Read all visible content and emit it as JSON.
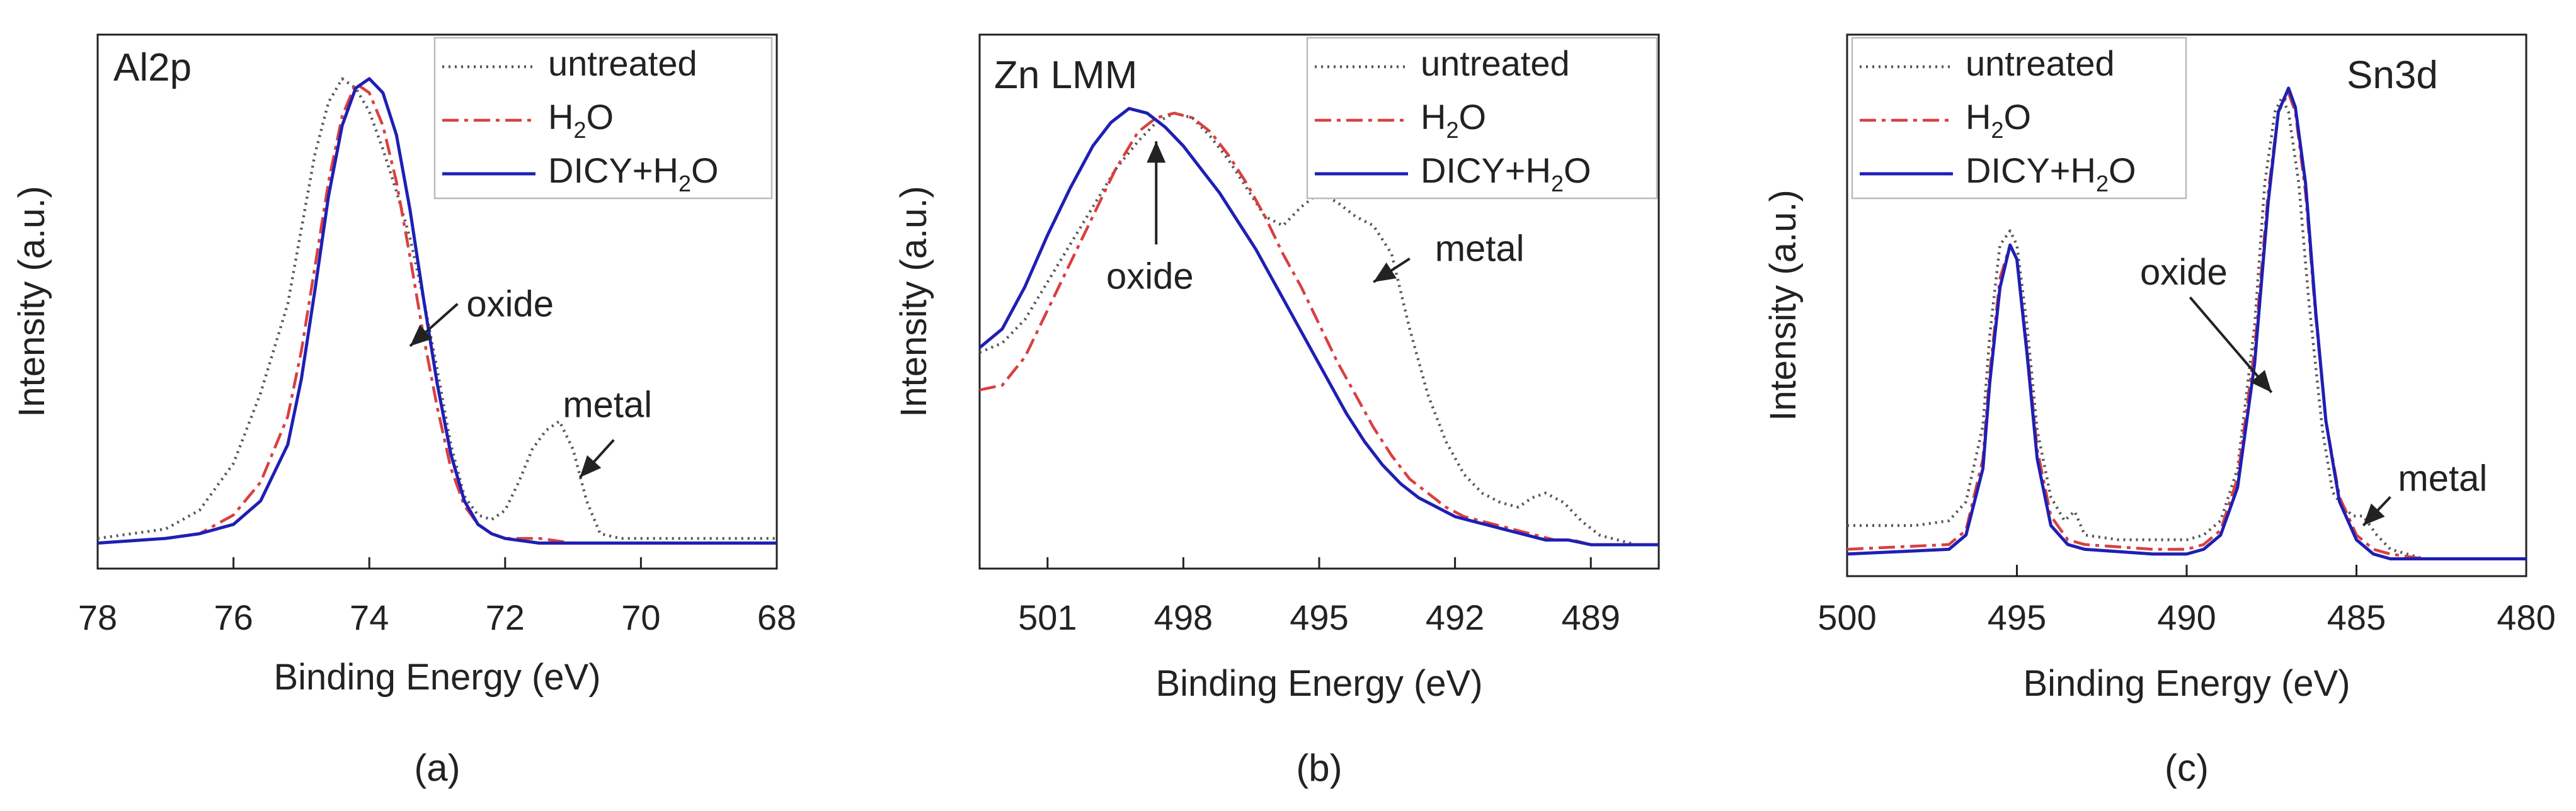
{
  "figure": {
    "xlabel": "Binding Energy (eV)",
    "ylabel": "Intensity (a.u.)"
  },
  "chart_data": [
    {
      "type": "line",
      "panel_label": "(a)",
      "element_label": "Al2p",
      "xlabel": "Binding Energy (eV)",
      "ylabel": "Intensity (a.u.)",
      "xlim": [
        78,
        68
      ],
      "ylim": [
        0,
        1.05
      ],
      "xticks": [
        "78",
        "76",
        "74",
        "72",
        "70",
        "68"
      ],
      "xtick_values": [
        78,
        76,
        74,
        72,
        70,
        68
      ],
      "legend": [
        "untreated",
        "H2O",
        "DICY+H2O"
      ],
      "series": [
        {
          "name": "untreated",
          "color": "#555555",
          "style": "dotted",
          "x": [
            78,
            77.5,
            77,
            76.5,
            76,
            75.6,
            75.2,
            75,
            74.8,
            74.6,
            74.4,
            74.2,
            74.0,
            73.8,
            73.6,
            73.4,
            73.2,
            73.0,
            72.8,
            72.6,
            72.4,
            72.2,
            72.0,
            71.8,
            71.6,
            71.4,
            71.2,
            71.0,
            70.8,
            70.6,
            70.3,
            70,
            69.5,
            69,
            68.5,
            68
          ],
          "values": [
            0.02,
            0.03,
            0.04,
            0.08,
            0.18,
            0.33,
            0.52,
            0.68,
            0.84,
            0.95,
            1.0,
            0.98,
            0.93,
            0.85,
            0.76,
            0.66,
            0.53,
            0.38,
            0.22,
            0.11,
            0.07,
            0.06,
            0.08,
            0.14,
            0.21,
            0.25,
            0.27,
            0.21,
            0.1,
            0.03,
            0.02,
            0.02,
            0.02,
            0.02,
            0.02,
            0.02
          ]
        },
        {
          "name": "H2O",
          "color": "#d94040",
          "style": "dashdot",
          "x": [
            78,
            77,
            76.5,
            76,
            75.6,
            75.2,
            75,
            74.8,
            74.6,
            74.4,
            74.2,
            74.0,
            73.8,
            73.6,
            73.4,
            73.2,
            73.0,
            72.8,
            72.6,
            72.4,
            72.2,
            72.0,
            71.5,
            71,
            70,
            69,
            68
          ],
          "values": [
            0.01,
            0.02,
            0.03,
            0.07,
            0.14,
            0.28,
            0.42,
            0.6,
            0.78,
            0.92,
            0.99,
            0.97,
            0.9,
            0.78,
            0.62,
            0.45,
            0.3,
            0.17,
            0.09,
            0.05,
            0.03,
            0.02,
            0.02,
            0.01,
            0.01,
            0.01,
            0.01
          ]
        },
        {
          "name": "DICY+H2O",
          "color": "#1f1fb4",
          "style": "solid",
          "x": [
            78,
            77,
            76.5,
            76,
            75.6,
            75.2,
            75,
            74.8,
            74.6,
            74.4,
            74.2,
            74.0,
            73.8,
            73.6,
            73.4,
            73.2,
            73.0,
            72.8,
            72.6,
            72.4,
            72.2,
            72.0,
            71.5,
            71,
            70,
            69,
            68
          ],
          "values": [
            0.01,
            0.02,
            0.03,
            0.05,
            0.1,
            0.22,
            0.36,
            0.55,
            0.75,
            0.9,
            0.98,
            1.0,
            0.97,
            0.88,
            0.72,
            0.53,
            0.35,
            0.2,
            0.1,
            0.05,
            0.03,
            0.02,
            0.01,
            0.01,
            0.01,
            0.01,
            0.01
          ]
        }
      ],
      "annotations": [
        {
          "text": "oxide",
          "arrow_from": [
            72.7,
            0.52
          ],
          "arrow_to": [
            73.4,
            0.43
          ]
        },
        {
          "text": "metal",
          "arrow_from": [
            70.4,
            0.23
          ],
          "arrow_to": [
            70.9,
            0.15
          ]
        }
      ]
    },
    {
      "type": "line",
      "panel_label": "(b)",
      "element_label": "Zn LMM",
      "xlabel": "Binding Energy (eV)",
      "ylabel": "Intensity (a.u.)",
      "xlim": [
        502.5,
        487.5
      ],
      "ylim": [
        0,
        1.05
      ],
      "xticks": [
        "501",
        "498",
        "495",
        "492",
        "489"
      ],
      "xtick_values": [
        501,
        498,
        495,
        492,
        489
      ],
      "legend": [
        "untreated",
        "H2O",
        "DICY+H2O"
      ],
      "series": [
        {
          "name": "untreated",
          "color": "#555555",
          "style": "dotted",
          "x": [
            502.5,
            502,
            501.5,
            501,
            500.5,
            500,
            499.5,
            499,
            498.6,
            498.2,
            497.8,
            497.4,
            497,
            496.6,
            496.2,
            495.8,
            495.4,
            495,
            494.6,
            494.2,
            493.8,
            493.4,
            493,
            492.6,
            492.2,
            491.8,
            491.4,
            491,
            490.6,
            490.3,
            490,
            489.6,
            489.2,
            488.8,
            488.4,
            488,
            487.5
          ],
          "values": [
            0.43,
            0.45,
            0.5,
            0.58,
            0.66,
            0.74,
            0.82,
            0.88,
            0.92,
            0.94,
            0.93,
            0.89,
            0.84,
            0.78,
            0.72,
            0.7,
            0.74,
            0.77,
            0.75,
            0.72,
            0.7,
            0.64,
            0.48,
            0.34,
            0.24,
            0.17,
            0.13,
            0.11,
            0.1,
            0.12,
            0.13,
            0.11,
            0.07,
            0.04,
            0.03,
            0.02,
            0.02
          ]
        },
        {
          "name": "H2O",
          "color": "#d94040",
          "style": "dashdot",
          "x": [
            502.5,
            502,
            501.5,
            501,
            500.5,
            500,
            499.5,
            499,
            498.6,
            498.2,
            497.8,
            497.4,
            497,
            496.6,
            496.2,
            495.8,
            495.4,
            495,
            494.6,
            494.2,
            493.8,
            493.4,
            493,
            492.6,
            492.2,
            491.8,
            491.4,
            491,
            490.6,
            490.2,
            489.8,
            489.4,
            489,
            488.6,
            488.2,
            487.5
          ],
          "values": [
            0.35,
            0.36,
            0.42,
            0.52,
            0.62,
            0.72,
            0.82,
            0.9,
            0.93,
            0.94,
            0.93,
            0.9,
            0.85,
            0.79,
            0.72,
            0.64,
            0.57,
            0.49,
            0.41,
            0.34,
            0.27,
            0.21,
            0.16,
            0.13,
            0.1,
            0.08,
            0.07,
            0.06,
            0.05,
            0.04,
            0.03,
            0.03,
            0.02,
            0.02,
            0.02,
            0.02
          ]
        },
        {
          "name": "DICY+H2O",
          "color": "#1f1fb4",
          "style": "solid",
          "x": [
            502.5,
            502,
            501.5,
            501,
            500.5,
            500,
            499.6,
            499.2,
            498.8,
            498.4,
            498,
            497.6,
            497.2,
            496.8,
            496.4,
            496,
            495.6,
            495.2,
            494.8,
            494.4,
            494,
            493.6,
            493.2,
            492.8,
            492.4,
            492,
            491.6,
            491.2,
            490.8,
            490.4,
            490,
            489.5,
            489,
            488.5,
            488,
            487.5
          ],
          "values": [
            0.44,
            0.48,
            0.57,
            0.68,
            0.78,
            0.87,
            0.92,
            0.95,
            0.94,
            0.91,
            0.87,
            0.82,
            0.77,
            0.71,
            0.65,
            0.58,
            0.51,
            0.44,
            0.37,
            0.3,
            0.24,
            0.19,
            0.15,
            0.12,
            0.1,
            0.08,
            0.07,
            0.06,
            0.05,
            0.04,
            0.03,
            0.03,
            0.02,
            0.02,
            0.02,
            0.02
          ]
        }
      ],
      "annotations": [
        {
          "text": "oxide",
          "arrow_from": [
            498.6,
            0.66
          ],
          "arrow_to": [
            498.6,
            0.88
          ]
        },
        {
          "text": "metal",
          "arrow_from": [
            493.0,
            0.63
          ],
          "arrow_to": [
            493.8,
            0.58
          ]
        }
      ]
    },
    {
      "type": "line",
      "panel_label": "(c)",
      "element_label": "Sn3d",
      "xlabel": "Binding Energy (eV)",
      "ylabel": "Intensity (a.u.)",
      "xlim": [
        500,
        480
      ],
      "ylim": [
        0,
        1.05
      ],
      "xticks": [
        "500",
        "495",
        "490",
        "485",
        "480"
      ],
      "xtick_values": [
        500,
        495,
        490,
        485,
        480
      ],
      "legend": [
        "untreated",
        "H2O",
        "DICY+H2O"
      ],
      "series": [
        {
          "name": "untreated",
          "color": "#555555",
          "style": "dotted",
          "x": [
            500,
            498,
            497,
            496.5,
            496,
            495.8,
            495.5,
            495.2,
            495,
            494.7,
            494.4,
            494,
            493.6,
            493.3,
            493,
            492,
            491,
            490,
            489.5,
            489,
            488.5,
            488,
            487.7,
            487.4,
            487.2,
            487.0,
            486.7,
            486.4,
            486,
            485.7,
            485.4,
            485.1,
            484.8,
            484.4,
            484,
            483,
            482,
            480
          ],
          "values": [
            0.08,
            0.08,
            0.09,
            0.13,
            0.29,
            0.48,
            0.67,
            0.7,
            0.67,
            0.5,
            0.28,
            0.14,
            0.09,
            0.11,
            0.06,
            0.05,
            0.05,
            0.05,
            0.06,
            0.09,
            0.2,
            0.5,
            0.8,
            0.95,
            0.98,
            0.95,
            0.8,
            0.55,
            0.28,
            0.15,
            0.12,
            0.1,
            0.1,
            0.06,
            0.03,
            0.01,
            0.01,
            0.01
          ]
        },
        {
          "name": "H2O",
          "color": "#d94040",
          "style": "dashdot",
          "x": [
            500,
            497,
            496.5,
            496,
            495.8,
            495.5,
            495.2,
            495,
            494.7,
            494.4,
            494,
            493.5,
            493,
            491,
            490,
            489.5,
            489,
            488.5,
            488,
            487.6,
            487.3,
            487.0,
            486.8,
            486.5,
            486.2,
            485.9,
            485.5,
            485,
            484.5,
            484,
            483,
            480
          ],
          "values": [
            0.03,
            0.04,
            0.07,
            0.22,
            0.4,
            0.6,
            0.67,
            0.64,
            0.45,
            0.24,
            0.1,
            0.05,
            0.04,
            0.03,
            0.03,
            0.04,
            0.07,
            0.18,
            0.45,
            0.78,
            0.95,
            0.99,
            0.95,
            0.78,
            0.52,
            0.3,
            0.14,
            0.06,
            0.03,
            0.02,
            0.01,
            0.01
          ]
        },
        {
          "name": "DICY+H2O",
          "color": "#1f1fb4",
          "style": "solid",
          "x": [
            500,
            497,
            496.5,
            496,
            495.8,
            495.5,
            495.2,
            495,
            494.7,
            494.4,
            494,
            493.5,
            493,
            491,
            490,
            489.5,
            489,
            488.5,
            488,
            487.6,
            487.3,
            487.0,
            486.8,
            486.5,
            486.2,
            485.9,
            485.5,
            485,
            484.5,
            484,
            483,
            480
          ],
          "values": [
            0.02,
            0.03,
            0.06,
            0.2,
            0.38,
            0.58,
            0.67,
            0.64,
            0.44,
            0.22,
            0.08,
            0.04,
            0.03,
            0.02,
            0.02,
            0.03,
            0.06,
            0.16,
            0.42,
            0.76,
            0.95,
            1.0,
            0.96,
            0.8,
            0.53,
            0.3,
            0.13,
            0.05,
            0.02,
            0.01,
            0.01,
            0.01
          ]
        }
      ],
      "annotations": [
        {
          "text": "oxide",
          "arrow_from": [
            489.9,
            0.56
          ],
          "arrow_to": [
            487.5,
            0.36
          ]
        },
        {
          "text": "metal",
          "arrow_from": [
            484.0,
            0.14
          ],
          "arrow_to": [
            484.8,
            0.08
          ]
        }
      ]
    }
  ]
}
